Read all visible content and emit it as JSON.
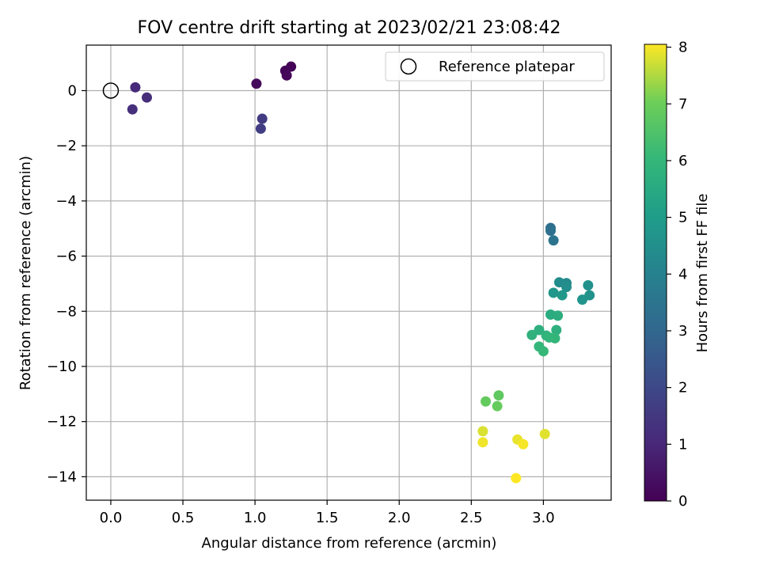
{
  "chart_data": {
    "type": "scatter",
    "title": "FOV centre drift starting at 2023/02/21 23:08:42",
    "xlabel": "Angular distance from reference (arcmin)",
    "ylabel": "Rotation from reference (arcmin)",
    "xlim": [
      -0.17,
      3.47
    ],
    "ylim": [
      -14.85,
      1.65
    ],
    "xticks": [
      0.0,
      0.5,
      1.0,
      1.5,
      2.0,
      2.5,
      3.0
    ],
    "xtick_labels": [
      "0.0",
      "0.5",
      "1.0",
      "1.5",
      "2.0",
      "2.5",
      "3.0"
    ],
    "yticks": [
      0,
      -2,
      -4,
      -6,
      -8,
      -10,
      -12,
      -14
    ],
    "ytick_labels": [
      "0",
      "−2",
      "−4",
      "−6",
      "−8",
      "−10",
      "−12",
      "−14"
    ],
    "grid": true,
    "legend": {
      "position": "top-right",
      "entries": [
        "Reference platepar"
      ]
    },
    "reference_point": {
      "x": 0.0,
      "y": 0.0,
      "label": "Reference platepar"
    },
    "colorbar": {
      "label": "Hours from first FF file",
      "range": [
        0,
        8.05
      ],
      "ticks": [
        0,
        1,
        2,
        3,
        4,
        5,
        6,
        7,
        8
      ],
      "tick_labels": [
        "0",
        "1",
        "2",
        "3",
        "4",
        "5",
        "6",
        "7",
        "8"
      ],
      "colormap": "viridis"
    },
    "points": [
      {
        "x": 1.25,
        "y": 0.87,
        "hours": 0.05
      },
      {
        "x": 1.21,
        "y": 0.72,
        "hours": 0.1
      },
      {
        "x": 1.22,
        "y": 0.55,
        "hours": 0.15
      },
      {
        "x": 1.01,
        "y": 0.25,
        "hours": 0.2
      },
      {
        "x": 0.17,
        "y": 0.12,
        "hours": 1.1
      },
      {
        "x": 0.25,
        "y": -0.25,
        "hours": 1.2
      },
      {
        "x": 0.15,
        "y": -0.68,
        "hours": 1.25
      },
      {
        "x": 1.05,
        "y": -1.02,
        "hours": 1.6
      },
      {
        "x": 1.04,
        "y": -1.38,
        "hours": 1.65
      },
      {
        "x": 3.05,
        "y": -4.98,
        "hours": 3.3
      },
      {
        "x": 3.05,
        "y": -5.08,
        "hours": 3.35
      },
      {
        "x": 3.07,
        "y": -5.43,
        "hours": 3.5
      },
      {
        "x": 3.11,
        "y": -6.95,
        "hours": 4.4
      },
      {
        "x": 3.16,
        "y": -6.98,
        "hours": 4.3
      },
      {
        "x": 3.16,
        "y": -7.12,
        "hours": 4.45
      },
      {
        "x": 3.31,
        "y": -7.06,
        "hours": 4.55
      },
      {
        "x": 3.32,
        "y": -7.42,
        "hours": 4.6
      },
      {
        "x": 3.27,
        "y": -7.58,
        "hours": 4.7
      },
      {
        "x": 3.07,
        "y": -7.33,
        "hours": 4.75
      },
      {
        "x": 3.13,
        "y": -7.42,
        "hours": 4.8
      },
      {
        "x": 3.05,
        "y": -8.12,
        "hours": 5.6
      },
      {
        "x": 3.1,
        "y": -8.16,
        "hours": 5.65
      },
      {
        "x": 2.97,
        "y": -8.68,
        "hours": 5.7
      },
      {
        "x": 3.09,
        "y": -8.68,
        "hours": 5.75
      },
      {
        "x": 2.92,
        "y": -8.86,
        "hours": 5.8
      },
      {
        "x": 3.02,
        "y": -8.88,
        "hours": 5.85
      },
      {
        "x": 3.04,
        "y": -8.95,
        "hours": 5.9
      },
      {
        "x": 3.08,
        "y": -8.98,
        "hours": 5.95
      },
      {
        "x": 2.97,
        "y": -9.28,
        "hours": 6.0
      },
      {
        "x": 3.0,
        "y": -9.45,
        "hours": 6.05
      },
      {
        "x": 2.69,
        "y": -11.05,
        "hours": 6.8
      },
      {
        "x": 2.6,
        "y": -11.27,
        "hours": 6.85
      },
      {
        "x": 2.68,
        "y": -11.44,
        "hours": 6.9
      },
      {
        "x": 2.58,
        "y": -12.35,
        "hours": 7.8
      },
      {
        "x": 3.01,
        "y": -12.45,
        "hours": 7.85
      },
      {
        "x": 2.82,
        "y": -12.65,
        "hours": 7.9
      },
      {
        "x": 2.58,
        "y": -12.75,
        "hours": 7.95
      },
      {
        "x": 2.86,
        "y": -12.82,
        "hours": 8.0
      },
      {
        "x": 2.81,
        "y": -14.05,
        "hours": 8.05
      }
    ]
  }
}
